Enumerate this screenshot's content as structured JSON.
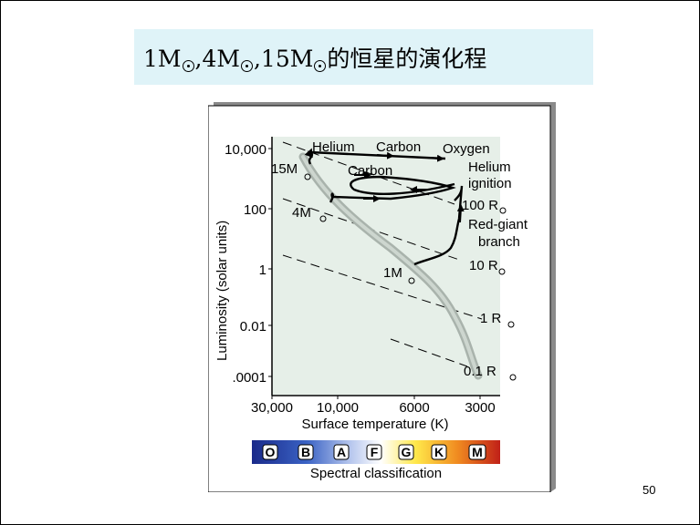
{
  "title": {
    "part1": "1M",
    "part2": ",4M",
    "part3": ",15M",
    "part4": "的恒星的演化程"
  },
  "page_number": "50",
  "diagram": {
    "ylabel": "Luminosity (solar units)",
    "xlabel": "Surface temperature (K)",
    "y_ticks": [
      "10,000",
      "100",
      "1",
      "0.01",
      ".0001"
    ],
    "x_ticks": [
      "30,000",
      "10,000",
      "6000",
      "3000"
    ],
    "radius_labels": [
      "100 R",
      "10 R",
      "1 R",
      "0.1 R"
    ],
    "mass_labels": [
      "15M",
      "4M",
      "1M"
    ],
    "top_labels": {
      "helium": "Helium",
      "carbon_top": "Carbon",
      "oxygen": "Oxygen",
      "carbon_mid": "Carbon",
      "helium_ignition_1": "Helium",
      "helium_ignition_2": "ignition",
      "red_giant_1": "Red-giant",
      "red_giant_2": "branch"
    },
    "spectral_classes": [
      "O",
      "B",
      "A",
      "F",
      "G",
      "K",
      "M"
    ],
    "spectral_label": "Spectral classification",
    "colors": {
      "plot_bg": "#e6efe8",
      "spectral_gradient": [
        "#1a2a8a",
        "#3a62c4",
        "#a0b4e6",
        "#ffffff",
        "#ffe84a",
        "#f08a20",
        "#c02018"
      ]
    }
  }
}
